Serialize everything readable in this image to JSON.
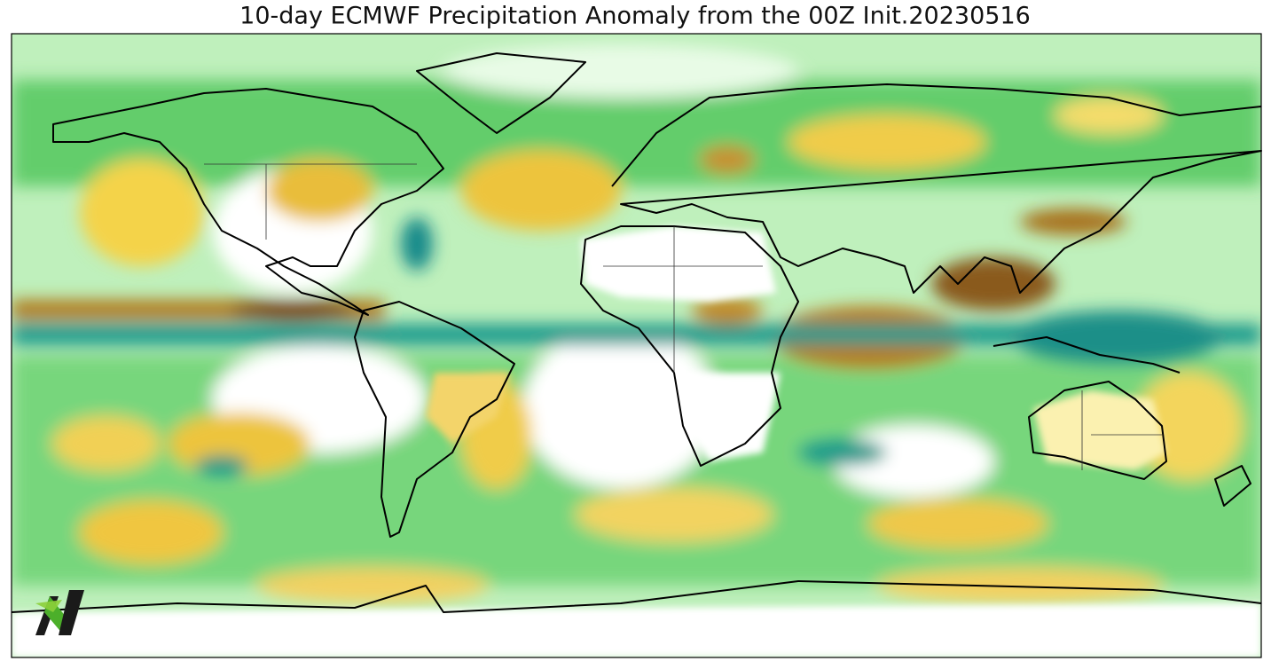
{
  "title": "10-day ECMWF Precipitation Anomaly from the 00Z Init.20230516"
}
